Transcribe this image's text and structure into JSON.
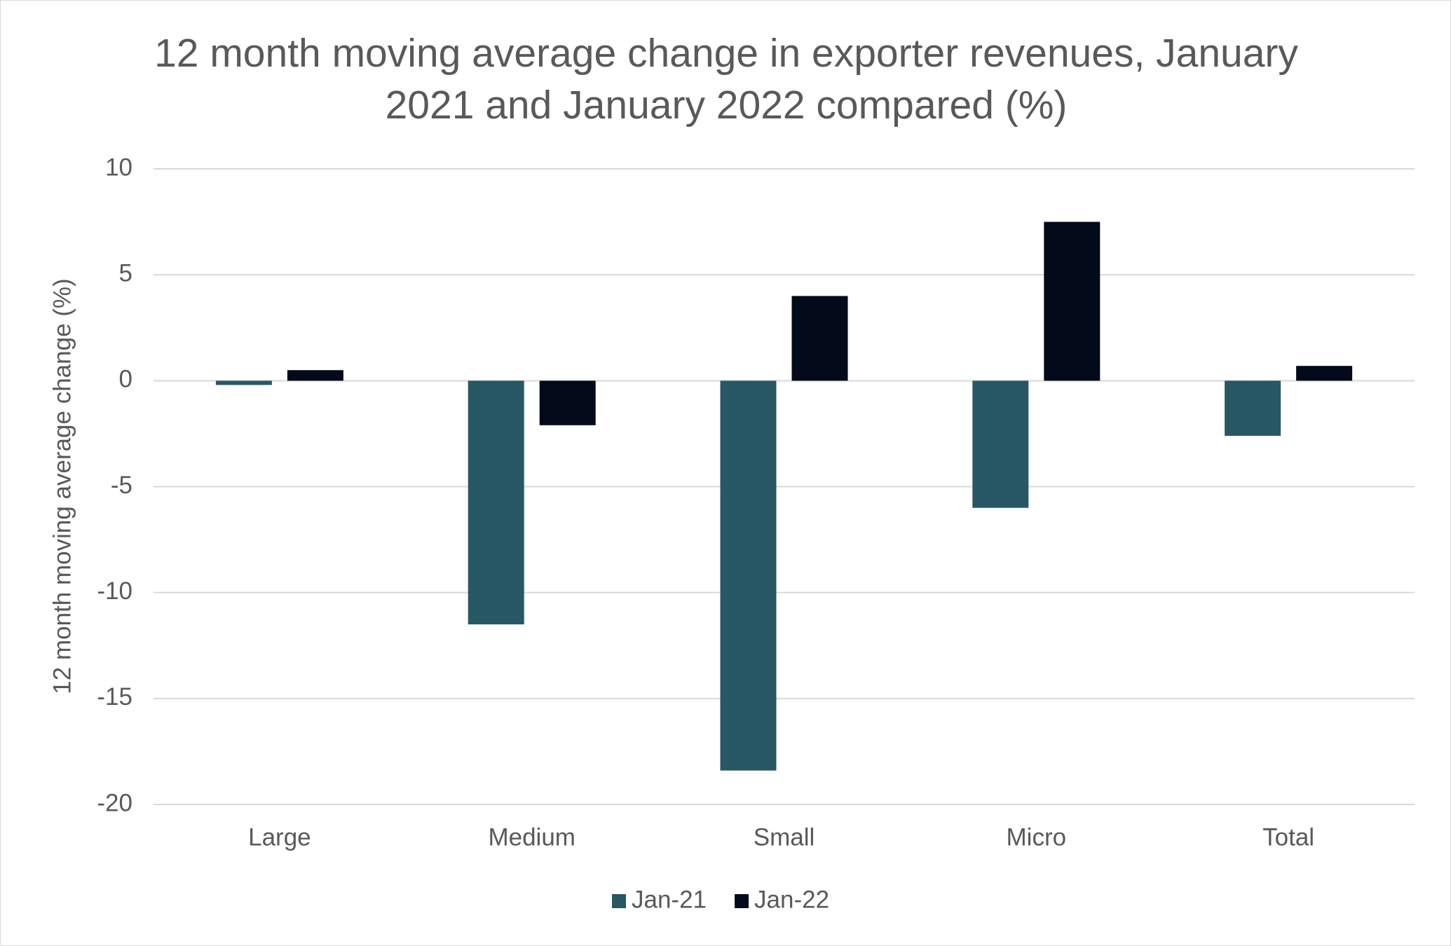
{
  "chart_data": {
    "type": "bar",
    "title": "12 month moving average change in exporter revenues, January 2021 and January 2022 compared (%)",
    "y_label": "12 month moving average change (%)",
    "categories": [
      "Large",
      "Medium",
      "Small",
      "Micro",
      "Total"
    ],
    "series": [
      {
        "name": "Jan-21",
        "color": "#285765",
        "values": [
          -0.2,
          -11.5,
          -18.4,
          -6.0,
          -2.6
        ]
      },
      {
        "name": "Jan-22",
        "color": "#030a1a",
        "values": [
          0.5,
          -2.1,
          4.0,
          7.5,
          0.7
        ]
      }
    ],
    "ylim": [
      -20,
      10
    ],
    "yticks": [
      -20,
      -15,
      -10,
      -5,
      0,
      5,
      10
    ],
    "grid": true,
    "legend": "bottom"
  }
}
